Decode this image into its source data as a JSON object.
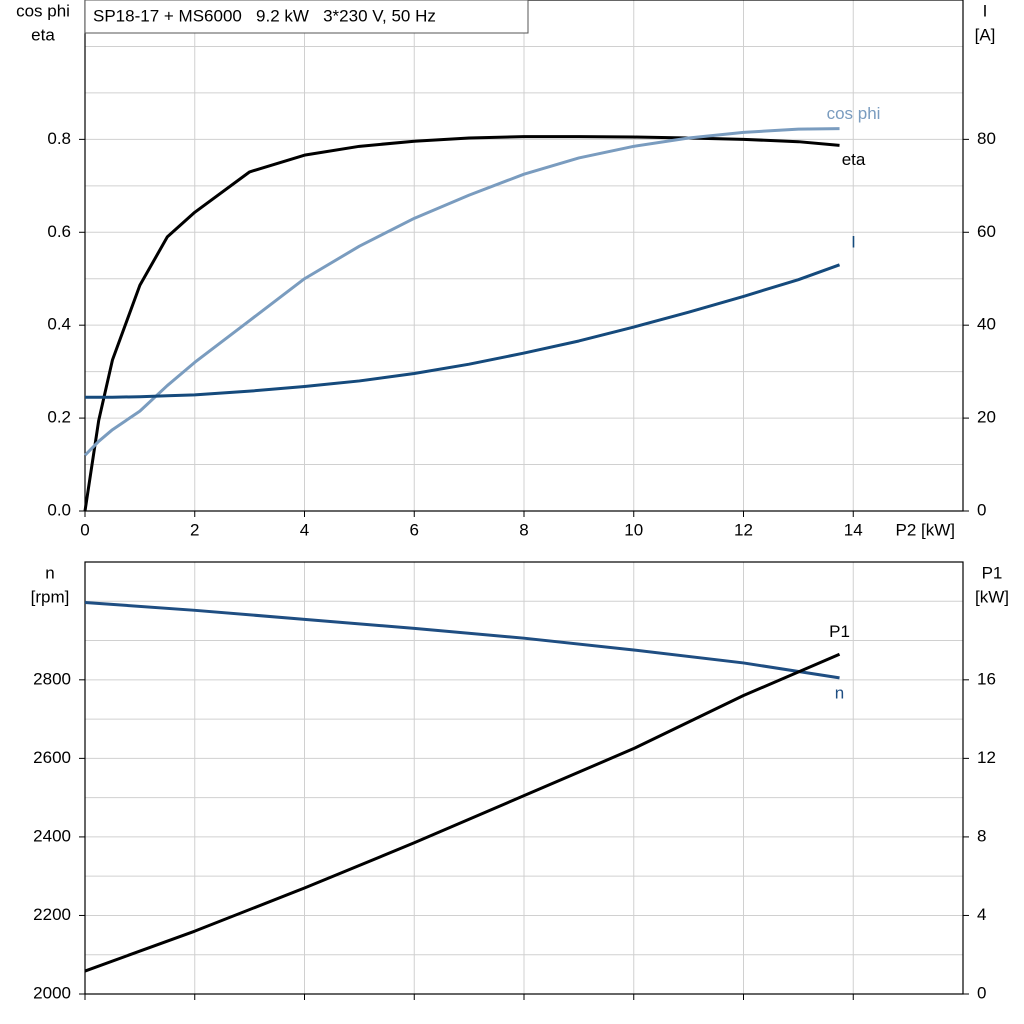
{
  "chart_data": [
    {
      "type": "line",
      "title": "SP18-17 + MS6000   9.2 kW   3*230 V, 50 Hz",
      "ylabel": [
        "cos phi",
        "eta"
      ],
      "y2label": [
        "I",
        "[A]"
      ],
      "xlabel": "P2 [kW]",
      "x": [
        0,
        0.25,
        0.5,
        1,
        1.5,
        2,
        3,
        4,
        5,
        6,
        7,
        8,
        9,
        10,
        11,
        12,
        13,
        13.75
      ],
      "series": [
        {
          "name": "eta",
          "color": "#000000",
          "values": [
            0,
            0.195,
            0.325,
            0.486,
            0.59,
            0.643,
            0.73,
            0.766,
            0.785,
            0.796,
            0.803,
            0.806,
            0.806,
            0.805,
            0.803,
            0.8,
            0.795,
            0.787
          ]
        },
        {
          "name": "cos phi",
          "color": "#7a9cbf",
          "values": [
            0.12,
            0.15,
            0.175,
            0.215,
            0.27,
            0.32,
            0.41,
            0.5,
            0.57,
            0.63,
            0.68,
            0.725,
            0.76,
            0.785,
            0.803,
            0.815,
            0.822,
            0.823
          ]
        },
        {
          "name": "I",
          "color": "#154a7c",
          "axis": "y2",
          "values": [
            24.5,
            24.5,
            24.5,
            24.6,
            24.8,
            25,
            25.8,
            26.8,
            28,
            29.6,
            31.6,
            34,
            36.6,
            39.6,
            42.8,
            46.2,
            49.8,
            53
          ]
        }
      ],
      "xlim": [
        0,
        16
      ],
      "xticks": [
        0,
        2,
        4,
        6,
        8,
        10,
        12,
        14
      ],
      "ylim": [
        0,
        1.1
      ],
      "yticks": [
        {
          "value": 0,
          "label": "0.0"
        },
        0.2,
        0.4,
        0.6,
        0.8
      ],
      "yminorticks": [
        0.1,
        0.3,
        0.5,
        0.7,
        0.9,
        1.0
      ],
      "y2lim": [
        0,
        110
      ],
      "y2ticks": [
        0,
        20,
        40,
        60,
        80
      ],
      "grid": true,
      "show_xtick_labels": true
    },
    {
      "type": "line",
      "ylabel": [
        "n",
        "[rpm]"
      ],
      "y2label": [
        "P1",
        "[kW]"
      ],
      "x": [
        0,
        2,
        4,
        6,
        8,
        10,
        12,
        13.75
      ],
      "series": [
        {
          "name": "n",
          "color": "#1f4e82",
          "values": [
            2997,
            2977,
            2954,
            2931,
            2906,
            2876,
            2843,
            2805
          ]
        },
        {
          "name": "P1",
          "color": "#000000",
          "axis": "y2",
          "values": [
            1.17,
            3.2,
            5.4,
            7.7,
            10.1,
            12.5,
            15.2,
            17.3
          ]
        }
      ],
      "xlim": [
        0,
        16
      ],
      "xticks": [
        0,
        2,
        4,
        6,
        8,
        10,
        12,
        14
      ],
      "ylim": [
        2000,
        3100
      ],
      "yticks": [
        2000,
        2200,
        2400,
        2600,
        2800
      ],
      "yminorticks": [
        2100,
        2300,
        2500,
        2700,
        2900,
        3000
      ],
      "y2lim": [
        0,
        22
      ],
      "y2ticks": [
        0,
        4,
        8,
        12,
        16
      ],
      "grid": true,
      "show_xtick_labels": false
    }
  ]
}
